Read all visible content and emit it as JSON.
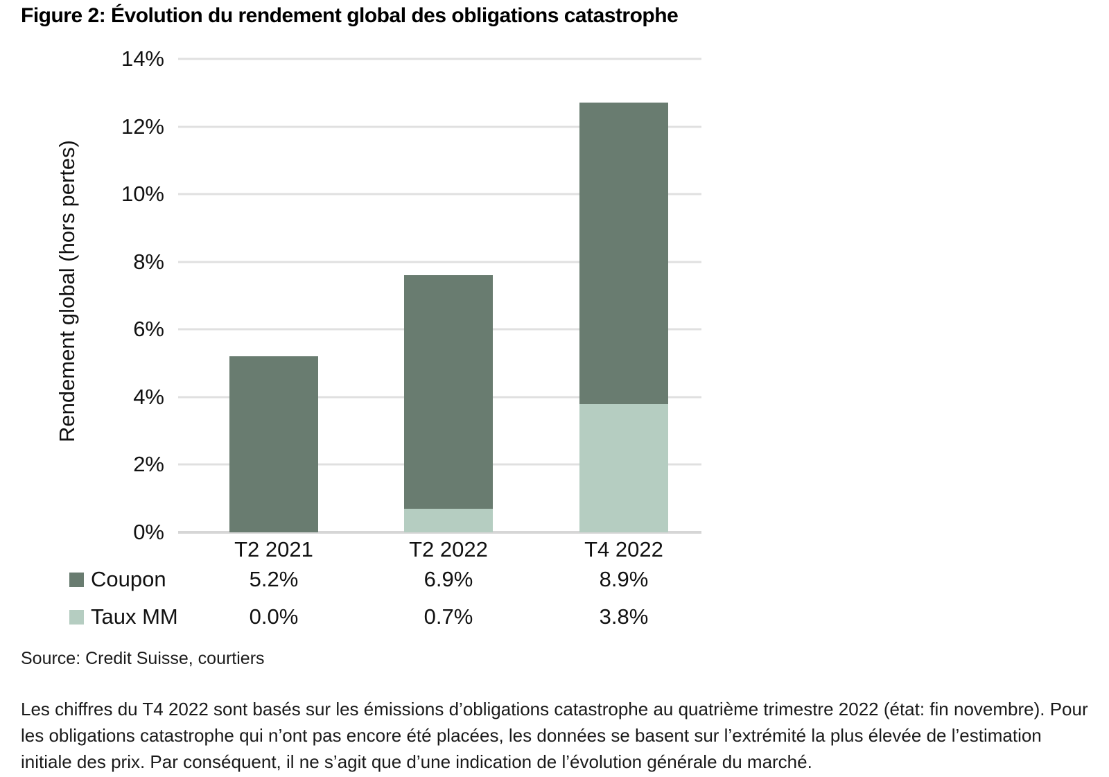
{
  "title": "Figure 2: Évolution du rendement global des obligations catastrophe",
  "chart_data": {
    "type": "bar",
    "stacked": true,
    "title": "Figure 2: Évolution du rendement global des obligations catastrophe",
    "categories": [
      "T2 2021",
      "T2 2022",
      "T4 2022"
    ],
    "series": [
      {
        "name": "Coupon",
        "values": [
          5.2,
          6.9,
          8.9
        ],
        "color": "#697c70"
      },
      {
        "name": "Taux MM",
        "values": [
          0.0,
          0.7,
          3.8
        ],
        "color": "#b5cdc1"
      }
    ],
    "xlabel": "",
    "ylabel": "Rendement global (hors pertes)",
    "ylim": [
      0,
      14
    ],
    "ytick_step": 2,
    "ytick_labels": [
      "0%",
      "2%",
      "4%",
      "6%",
      "8%",
      "10%",
      "12%",
      "14%"
    ],
    "grid": true,
    "legend_position": "bottom-table",
    "gridline_color": "#e0e0e0"
  },
  "legend_table": {
    "rows": [
      {
        "label": "Coupon",
        "swatch_color": "#697c70",
        "values": [
          "5.2%",
          "6.9%",
          "8.9%"
        ]
      },
      {
        "label": "Taux MM",
        "swatch_color": "#b5cdc1",
        "values": [
          "0.0%",
          "0.7%",
          "3.8%"
        ]
      }
    ]
  },
  "source": "Source: Credit Suisse, courtiers",
  "footnote": "Les chiffres du T4 2022 sont basés sur les émissions d’obligations catastrophe au quatrième trimestre 2022 (état: fin novembre). Pour les obligations catastrophe qui n’ont pas encore été placées, les données se basent sur l’extrémité la plus élevée de l’estimation initiale des prix. Par conséquent, il ne s’agit que d’une indication de l’évolution générale du marché."
}
